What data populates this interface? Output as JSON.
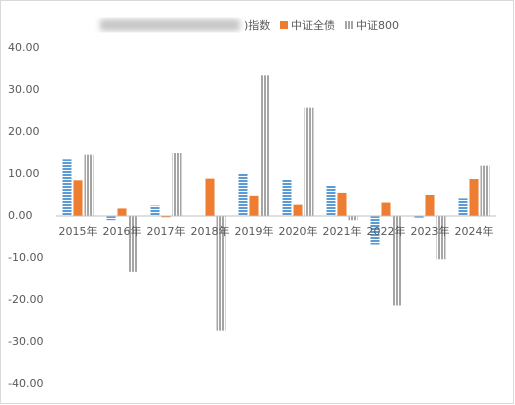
{
  "chart_data": {
    "type": "bar",
    "categories": [
      "2015年",
      "2016年",
      "2017年",
      "2018年",
      "2019年",
      "2020年",
      "2021年",
      "2022年",
      "2023年",
      "2024年"
    ],
    "series": [
      {
        "name": ")指数",
        "color": "#5b9bd5",
        "values": [
          13.5,
          -1.0,
          2.5,
          0,
          10.2,
          8.8,
          7.3,
          -6.8,
          -0.4,
          4.2
        ]
      },
      {
        "name": "中证全债",
        "color": "#ed7d31",
        "values": [
          8.5,
          1.8,
          -0.3,
          8.9,
          4.8,
          2.7,
          5.5,
          3.2,
          5.0,
          8.8
        ]
      },
      {
        "name": "中证800",
        "color": "#a5a5a5",
        "values": [
          14.6,
          -13.3,
          15.0,
          -27.3,
          33.5,
          25.8,
          -1.0,
          -21.3,
          -10.3,
          12.0
        ]
      }
    ],
    "ylim": [
      -40,
      40
    ],
    "yticks": [
      {
        "value": -40,
        "label": "-40.00"
      },
      {
        "value": -30,
        "label": "-30.00"
      },
      {
        "value": -20,
        "label": "-20.00"
      },
      {
        "value": -10,
        "label": "-10.00"
      },
      {
        "value": 0,
        "label": "0.00"
      },
      {
        "value": 10,
        "label": "10.00"
      },
      {
        "value": 20,
        "label": "20.00"
      },
      {
        "value": 30,
        "label": "30.00"
      },
      {
        "value": 40,
        "label": "40.00"
      }
    ],
    "legend": "top"
  }
}
